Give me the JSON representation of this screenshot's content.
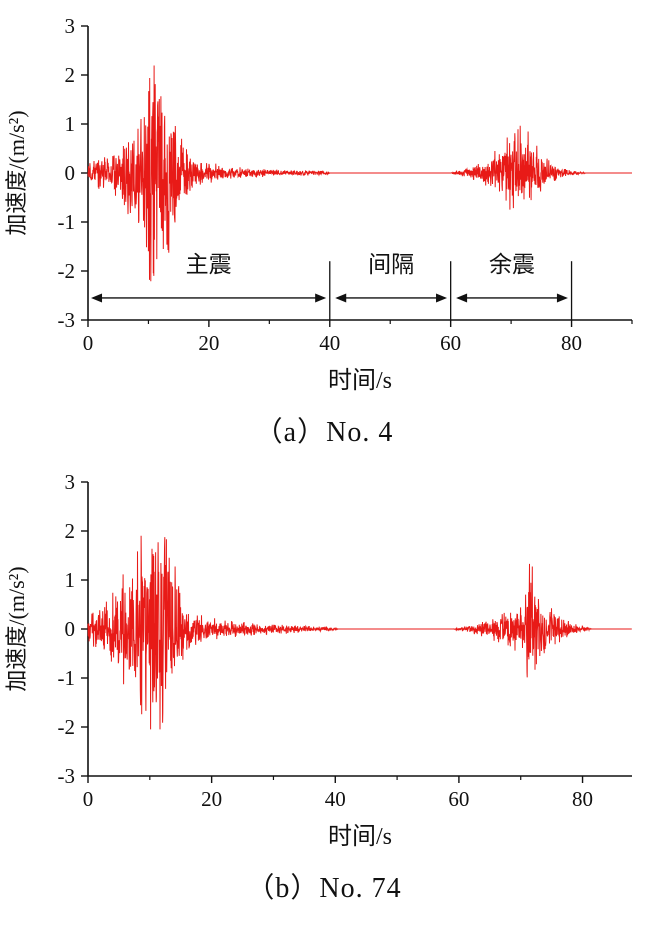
{
  "page": {
    "background": "#ffffff",
    "text_color": "#111111"
  },
  "chart_data": [
    {
      "type": "line",
      "caption": "（a）No. 4",
      "xlabel": "时间/s",
      "ylabel": "加速度/(m/s²)",
      "xlim": [
        0,
        90
      ],
      "ylim": [
        -3,
        3
      ],
      "xticks": [
        0,
        20,
        40,
        60,
        80
      ],
      "yticks": [
        -3,
        -2,
        -1,
        0,
        1,
        2,
        3
      ],
      "x_minor_step": 10,
      "line_color": "#e81a17",
      "axis_color": "#111111",
      "legend": "none",
      "grid": "off",
      "seed": 4041,
      "sample_dt": 0.045,
      "envelope": [
        [
          0,
          0.25
        ],
        [
          2,
          0.35
        ],
        [
          4,
          0.5
        ],
        [
          6,
          0.75
        ],
        [
          8,
          1.2
        ],
        [
          9.5,
          1.8
        ],
        [
          10.5,
          2.3
        ],
        [
          11,
          2.5
        ],
        [
          12,
          2.2
        ],
        [
          13,
          2.0
        ],
        [
          14,
          1.5
        ],
        [
          15,
          1.0
        ],
        [
          16,
          0.6
        ],
        [
          17.5,
          0.35
        ],
        [
          19,
          0.25
        ],
        [
          21,
          0.18
        ],
        [
          24,
          0.12
        ],
        [
          27,
          0.1
        ],
        [
          30,
          0.08
        ],
        [
          34,
          0.06
        ],
        [
          38,
          0.05
        ],
        [
          39.8,
          0.03
        ],
        [
          40,
          0
        ],
        [
          60,
          0
        ],
        [
          61,
          0.05
        ],
        [
          62.5,
          0.1
        ],
        [
          64,
          0.16
        ],
        [
          65.5,
          0.25
        ],
        [
          67,
          0.4
        ],
        [
          68.5,
          0.6
        ],
        [
          70,
          0.9
        ],
        [
          71,
          1.0
        ],
        [
          72,
          0.85
        ],
        [
          73,
          0.95
        ],
        [
          74,
          0.6
        ],
        [
          75,
          0.4
        ],
        [
          76.5,
          0.25
        ],
        [
          78,
          0.12
        ],
        [
          79.5,
          0.07
        ],
        [
          81,
          0.04
        ],
        [
          82.5,
          0
        ],
        [
          90,
          0
        ]
      ],
      "annotations": {
        "segments": [
          {
            "label": "主震",
            "from": 0.5,
            "to": 39.4
          },
          {
            "label": "间隔",
            "from": 40.9,
            "to": 59.4
          },
          {
            "label": "余震",
            "from": 60.9,
            "to": 79.4
          }
        ],
        "dividers": [
          40,
          60,
          80
        ],
        "arrow_y": -2.55,
        "label_y": -2.02,
        "divider_top": -1.8
      }
    },
    {
      "type": "line",
      "caption": "（b）No. 74",
      "xlabel": "时间/s",
      "ylabel": "加速度/(m/s²)",
      "xlim": [
        0,
        88
      ],
      "ylim": [
        -3,
        3
      ],
      "xticks": [
        0,
        20,
        40,
        60,
        80
      ],
      "yticks": [
        -3,
        -2,
        -1,
        0,
        1,
        2,
        3
      ],
      "x_minor_step": 10,
      "line_color": "#e81a17",
      "axis_color": "#111111",
      "legend": "none",
      "grid": "off",
      "seed": 7474,
      "sample_dt": 0.045,
      "envelope": [
        [
          0,
          0.3
        ],
        [
          1.5,
          0.45
        ],
        [
          3,
          0.6
        ],
        [
          5,
          0.9
        ],
        [
          7,
          1.4
        ],
        [
          8.5,
          2.0
        ],
        [
          9.5,
          2.4
        ],
        [
          10.5,
          2.1
        ],
        [
          11.5,
          2.3
        ],
        [
          12.5,
          2.2
        ],
        [
          13.5,
          1.6
        ],
        [
          14.5,
          1.0
        ],
        [
          15.5,
          0.55
        ],
        [
          17,
          0.35
        ],
        [
          19,
          0.25
        ],
        [
          22,
          0.18
        ],
        [
          25,
          0.15
        ],
        [
          28,
          0.12
        ],
        [
          31,
          0.1
        ],
        [
          34,
          0.08
        ],
        [
          37,
          0.06
        ],
        [
          39.5,
          0.04
        ],
        [
          40.5,
          0
        ],
        [
          59,
          0
        ],
        [
          60.5,
          0.05
        ],
        [
          62,
          0.09
        ],
        [
          64,
          0.15
        ],
        [
          66,
          0.25
        ],
        [
          67.5,
          0.35
        ],
        [
          69,
          0.45
        ],
        [
          70.5,
          0.6
        ],
        [
          71.5,
          1.6
        ],
        [
          72.3,
          1.1
        ],
        [
          73.2,
          0.7
        ],
        [
          74.5,
          0.45
        ],
        [
          76,
          0.3
        ],
        [
          77.5,
          0.18
        ],
        [
          79,
          0.1
        ],
        [
          80.5,
          0.05
        ],
        [
          81.5,
          0
        ],
        [
          88,
          0
        ]
      ],
      "annotations": null
    }
  ]
}
